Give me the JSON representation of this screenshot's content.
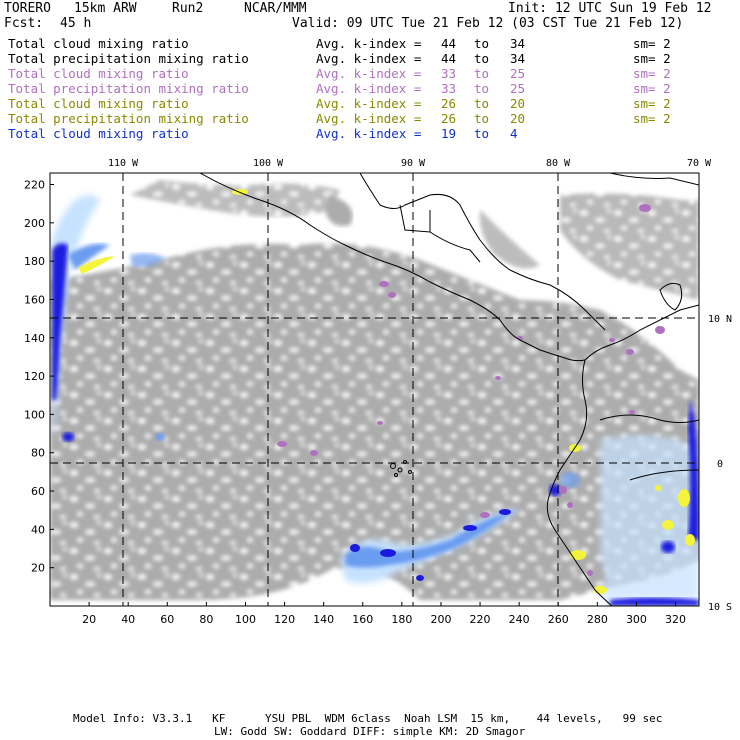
{
  "header": {
    "model": "TORERO",
    "resolution": "15km ARW",
    "run": "Run2",
    "org": "NCAR/MMM",
    "init": "Init: 12 UTC Sun 19 Feb 12",
    "fcst_label": "Fcst:",
    "fcst_value": "45 h",
    "valid": "Valid: 09 UTC Tue 21 Feb 12 (03 CST Tue 21 Feb 12)"
  },
  "legend": [
    {
      "field": "Total cloud mixing ratio",
      "idx_label": "Avg. k-index =",
      "from": "44",
      "to_label": "to",
      "to": "34",
      "sm": "sm= 2",
      "color": "#000000"
    },
    {
      "field": "Total precipitation mixing ratio",
      "idx_label": "Avg. k-index =",
      "from": "44",
      "to_label": "to",
      "to": "34",
      "sm": "sm= 2",
      "color": "#000000"
    },
    {
      "field": "Total cloud mixing ratio",
      "idx_label": "Avg. k-index =",
      "from": "33",
      "to_label": "to",
      "to": "25",
      "sm": "sm= 2",
      "color": "#b070c0"
    },
    {
      "field": "Total precipitation mixing ratio",
      "idx_label": "Avg. k-index =",
      "from": "33",
      "to_label": "to",
      "to": "25",
      "sm": "sm= 2",
      "color": "#b070c0"
    },
    {
      "field": "Total cloud mixing ratio",
      "idx_label": "Avg. k-index =",
      "from": "26",
      "to_label": "to",
      "to": "20",
      "sm": "sm= 2",
      "color": "#8a8a00"
    },
    {
      "field": "Total precipitation mixing ratio",
      "idx_label": "Avg. k-index =",
      "from": "26",
      "to_label": "to",
      "to": "20",
      "sm": "sm= 2",
      "color": "#8a8a00"
    },
    {
      "field": "Total cloud mixing ratio",
      "idx_label": "Avg. k-index =",
      "from": "19",
      "to_label": "to",
      "to": "4",
      "sm": "",
      "color": "#1030d0"
    }
  ],
  "map": {
    "lon_labels": [
      "110 W",
      "100 W",
      "90 W",
      "80 W",
      "70 W"
    ],
    "lat_labels": [
      "10 N",
      "0",
      "10 S"
    ],
    "x_ticks": [
      "20",
      "40",
      "60",
      "80",
      "100",
      "120",
      "140",
      "160",
      "180",
      "200",
      "220",
      "240",
      "260",
      "280",
      "300",
      "320"
    ],
    "y_ticks": [
      "220",
      "200",
      "180",
      "160",
      "140",
      "120",
      "100",
      "80",
      "60",
      "40",
      "20"
    ],
    "colors": {
      "gray_cloud": "#a8a8a8",
      "blue_dark": "#1a1adf",
      "blue_mid": "#6a9cf0",
      "blue_light": "#c6e2ff",
      "purple": "#b070c0",
      "yellow": "#f4f43a",
      "coast": "#000000"
    }
  },
  "footer": {
    "line1": "Model Info: V3.3.1   KF      YSU PBL  WDM 6class  Noah LSM  15 km,    44 levels,   99 sec",
    "line2": "LW: Godd SW: Goddard DIFF: simple KM: 2D Smagor"
  }
}
